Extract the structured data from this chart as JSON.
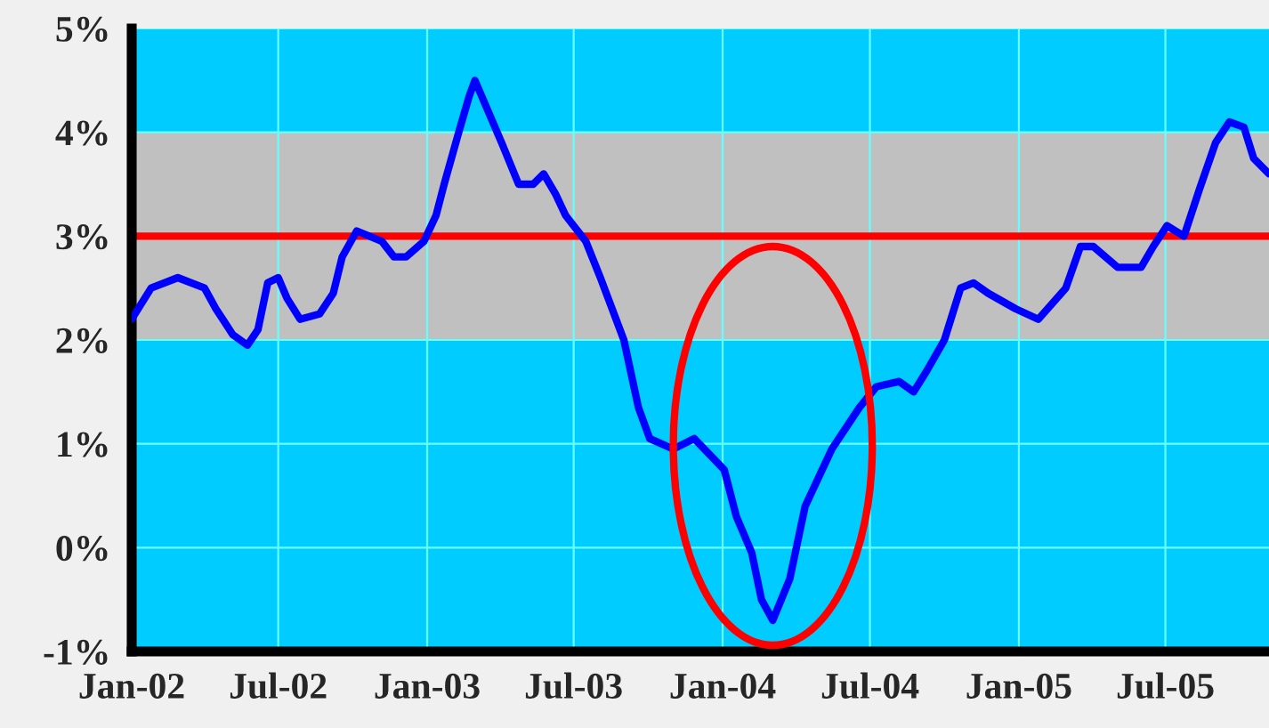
{
  "chart_data": {
    "type": "line",
    "x": [
      "2002-01-01",
      "2002-01-25",
      "2002-02-27",
      "2002-04-01",
      "2002-04-15",
      "2002-05-06",
      "2002-05-24",
      "2002-06-06",
      "2002-06-18",
      "2002-07-01",
      "2002-07-12",
      "2002-07-28",
      "2002-08-21",
      "2002-09-07",
      "2002-09-18",
      "2002-10-06",
      "2002-11-06",
      "2002-11-21",
      "2002-12-06",
      "2002-12-28",
      "2003-01-12",
      "2003-01-22",
      "2003-02-09",
      "2003-02-22",
      "2003-03-01",
      "2003-03-12",
      "2003-04-03",
      "2003-04-24",
      "2003-05-12",
      "2003-05-25",
      "2003-06-09",
      "2003-06-21",
      "2003-07-16",
      "2003-08-03",
      "2003-09-01",
      "2003-09-19",
      "2003-10-03",
      "2003-11-01",
      "2003-11-27",
      "2004-01-03",
      "2004-01-18",
      "2004-02-06",
      "2004-02-18",
      "2004-03-03",
      "2004-03-24",
      "2004-04-12",
      "2004-05-15",
      "2004-06-18",
      "2004-07-09",
      "2004-08-06",
      "2004-08-24",
      "2004-09-09",
      "2004-10-01",
      "2004-10-21",
      "2004-11-06",
      "2004-11-24",
      "2004-12-28",
      "2005-01-25",
      "2005-02-28",
      "2005-03-18",
      "2005-04-03",
      "2005-05-03",
      "2005-06-01",
      "2005-06-16",
      "2005-07-03",
      "2005-07-24",
      "2005-08-12",
      "2005-09-01",
      "2005-09-18",
      "2005-10-06",
      "2005-10-18",
      "2005-11-06"
    ],
    "series": [
      {
        "color": "#0000ff",
        "values": [
          2.2,
          2.5,
          2.6,
          2.5,
          2.3,
          2.05,
          1.95,
          2.1,
          2.55,
          2.6,
          2.4,
          2.2,
          2.25,
          2.45,
          2.8,
          3.05,
          2.95,
          2.8,
          2.8,
          2.95,
          3.2,
          3.5,
          4.0,
          4.35,
          4.5,
          4.3,
          3.9,
          3.5,
          3.5,
          3.6,
          3.4,
          3.2,
          2.95,
          2.6,
          2.0,
          1.35,
          1.05,
          0.95,
          1.05,
          0.75,
          0.3,
          -0.05,
          -0.5,
          -0.7,
          -0.3,
          0.4,
          0.95,
          1.35,
          1.55,
          1.6,
          1.5,
          1.7,
          2.0,
          2.5,
          2.55,
          2.45,
          2.3,
          2.2,
          2.5,
          2.9,
          2.9,
          2.7,
          2.7,
          2.9,
          3.1,
          3.0,
          3.45,
          3.9,
          4.1,
          4.05,
          3.75,
          3.6
        ]
      }
    ],
    "xlim": [
      "2002-01-01",
      "2005-11-06"
    ],
    "xticks": [
      {
        "value": "2002-01-01",
        "label": "Jan-02"
      },
      {
        "value": "2002-07-01",
        "label": "Jul-02"
      },
      {
        "value": "2003-01-01",
        "label": "Jan-03"
      },
      {
        "value": "2003-07-01",
        "label": "Jul-03"
      },
      {
        "value": "2004-01-01",
        "label": "Jan-04"
      },
      {
        "value": "2004-07-01",
        "label": "Jul-04"
      },
      {
        "value": "2005-01-01",
        "label": "Jan-05"
      },
      {
        "value": "2005-07-01",
        "label": "Jul-05"
      }
    ],
    "ylim": [
      -1,
      5
    ],
    "yticks": [
      {
        "value": -1,
        "label": "-1%"
      },
      {
        "value": 0,
        "label": "0%"
      },
      {
        "value": 1,
        "label": "1%"
      },
      {
        "value": 2,
        "label": "2%"
      },
      {
        "value": 3,
        "label": "3%"
      },
      {
        "value": 4,
        "label": "4%"
      },
      {
        "value": 5,
        "label": "5%"
      }
    ],
    "bands": [
      {
        "axis": "y",
        "from": 2,
        "to": 4,
        "color": "#c0c0c0"
      }
    ],
    "ref_lines": [
      {
        "axis": "y",
        "value": 3,
        "color": "#ff0000",
        "line_style": "solid"
      }
    ],
    "grid": true,
    "legend": false,
    "marker": "none",
    "line_style": "solid"
  }
}
